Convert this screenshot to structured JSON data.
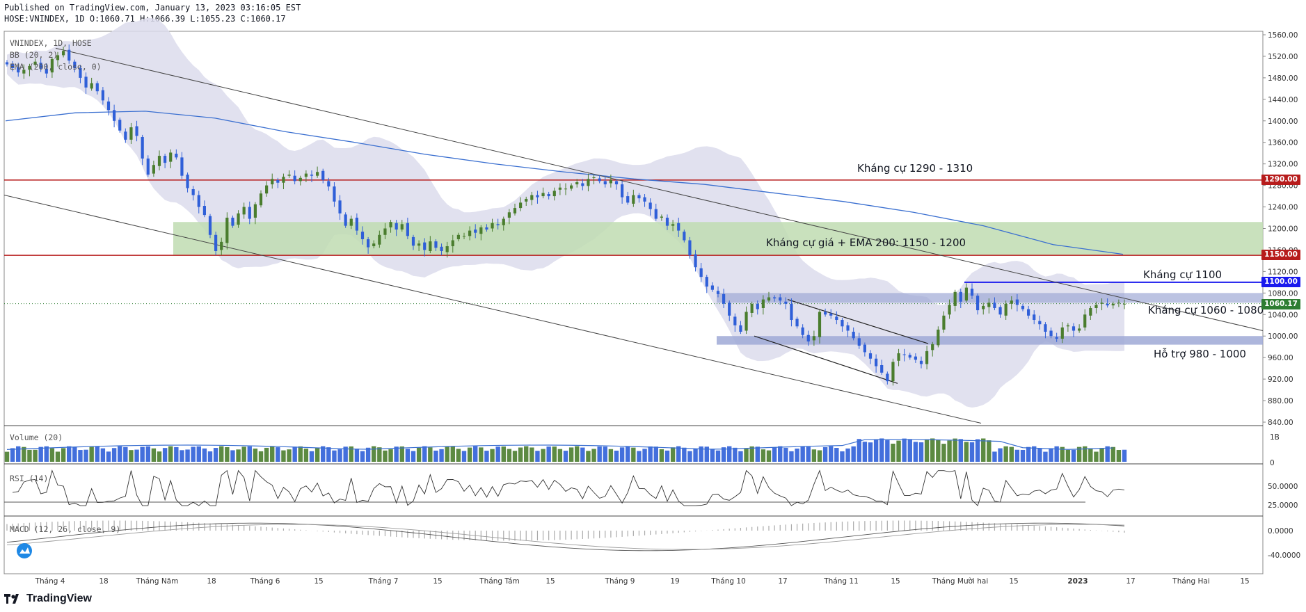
{
  "header": {
    "published": "Published on TradingView.com, January 13, 2023 03:16:05 EST",
    "ohlc": "HOSE:VNINDEX, 1D O:1060.71 H:1066.39 L:1055.23 C:1060.17"
  },
  "brand": {
    "name": "TradingView",
    "logo_icon": "tradingview-logo-icon"
  },
  "panes": {
    "main_legend": [
      "VNINDEX, 1D, HOSE",
      "BB (20, 2)",
      "EMA (200, close, 0)"
    ],
    "volume_label": "Volume (20)",
    "rsi_label": "RSI (14)",
    "macd_label": "MACD (12, 26, close, 9)"
  },
  "annotations": [
    {
      "id": "res-1290",
      "text": "Kháng cự 1290 - 1310"
    },
    {
      "id": "res-ema",
      "text": "Kháng cự giá + EMA 200: 1150 - 1200"
    },
    {
      "id": "res-1100",
      "text": "Kháng cự 1100"
    },
    {
      "id": "res-1060",
      "text": "Kháng cự 1060 - 1080"
    },
    {
      "id": "sup-980",
      "text": "Hỗ trợ 980 - 1000"
    }
  ],
  "price_tags": [
    {
      "text": "1290.00",
      "value": 1290,
      "color": "#b71c1c"
    },
    {
      "text": "1150.00",
      "value": 1150,
      "color": "#b71c1c"
    },
    {
      "text": "1100.00",
      "value": 1100,
      "color": "#1a1aee"
    },
    {
      "text": "1060.17",
      "value": 1060.17,
      "color": "#2e7d32"
    }
  ],
  "colors": {
    "up": "#4a7d2e",
    "down": "#2f5fd8",
    "bb_fill": "#dcdcec",
    "ema": "#3a6fd0",
    "zone_green": "#bfdcb2",
    "zone_blue": "#9fa9d6",
    "resistance_red": "#b71c1c",
    "resistance_blue": "#1a1aee"
  },
  "chart_data": {
    "type": "candlestick",
    "symbol": "HOSE:VNINDEX",
    "interval": "1D",
    "last": {
      "open": 1060.71,
      "high": 1066.39,
      "low": 1055.23,
      "close": 1060.17
    },
    "y_axis": {
      "ticks": [
        "1560.00",
        "1520.00",
        "1480.00",
        "1440.00",
        "1400.00",
        "1360.00",
        "1320.00",
        "1280.00",
        "1240.00",
        "1200.00",
        "1160.00",
        "1120.00",
        "1080.00",
        "1040.00",
        "1000.00",
        "960.00",
        "920.00",
        "880.00",
        "840.00"
      ],
      "range": [
        838,
        1563
      ]
    },
    "x_axis": {
      "tick_labels": [
        "Tháng 4",
        "18",
        "Tháng Năm",
        "18",
        "Tháng 6",
        "15",
        "Tháng 7",
        "15",
        "Tháng Tám",
        "15",
        "Tháng 9",
        "19",
        "Tháng 10",
        "17",
        "Tháng 11",
        "15",
        "Tháng Mười hai",
        "15",
        "2023",
        "17",
        "Tháng Hai",
        "15"
      ]
    },
    "closes": [
      1505,
      1498,
      1490,
      1495,
      1502,
      1510,
      1497,
      1488,
      1515,
      1522,
      1530,
      1512,
      1498,
      1480,
      1462,
      1470,
      1455,
      1438,
      1420,
      1400,
      1382,
      1365,
      1388,
      1372,
      1330,
      1300,
      1318,
      1335,
      1322,
      1341,
      1332,
      1298,
      1275,
      1262,
      1240,
      1225,
      1188,
      1158,
      1175,
      1220,
      1205,
      1228,
      1240,
      1218,
      1245,
      1265,
      1280,
      1292,
      1285,
      1296,
      1300,
      1288,
      1294,
      1302,
      1298,
      1305,
      1290,
      1278,
      1250,
      1228,
      1205,
      1218,
      1196,
      1180,
      1165,
      1172,
      1188,
      1200,
      1212,
      1198,
      1208,
      1186,
      1168,
      1172,
      1160,
      1176,
      1164,
      1158,
      1167,
      1178,
      1188,
      1186,
      1196,
      1192,
      1202,
      1198,
      1210,
      1206,
      1218,
      1230,
      1238,
      1248,
      1255,
      1262,
      1258,
      1266,
      1260,
      1270,
      1276,
      1274,
      1280,
      1286,
      1279,
      1292,
      1295,
      1288,
      1282,
      1290,
      1282,
      1258,
      1248,
      1262,
      1256,
      1250,
      1236,
      1218,
      1222,
      1205,
      1208,
      1196,
      1178,
      1150,
      1128,
      1110,
      1092,
      1086,
      1078,
      1060,
      1038,
      1020,
      1008,
      1045,
      1060,
      1050,
      1068,
      1072,
      1070,
      1066,
      1060,
      1030,
      1018,
      1002,
      990,
      1000,
      1045,
      1040,
      1038,
      1030,
      1018,
      1010,
      996,
      982,
      970,
      958,
      944,
      932,
      916,
      952,
      968,
      965,
      960,
      956,
      948,
      972,
      985,
      1012,
      1038,
      1058,
      1082,
      1064,
      1090,
      1075,
      1048,
      1056,
      1062,
      1052,
      1040,
      1060,
      1066,
      1058,
      1050,
      1038,
      1030,
      1022,
      1008,
      1000,
      995,
      1016,
      1020,
      1010,
      1014,
      1040,
      1052,
      1058,
      1062,
      1057,
      1060,
      1062,
      1060
    ],
    "volume_axis": {
      "ticks": [
        "1B",
        "0"
      ]
    },
    "rsi_axis": {
      "ticks": [
        "50.0000",
        "25.0000"
      ]
    },
    "macd_axis": {
      "ticks": [
        "0.0000",
        "-40.0000"
      ]
    }
  }
}
